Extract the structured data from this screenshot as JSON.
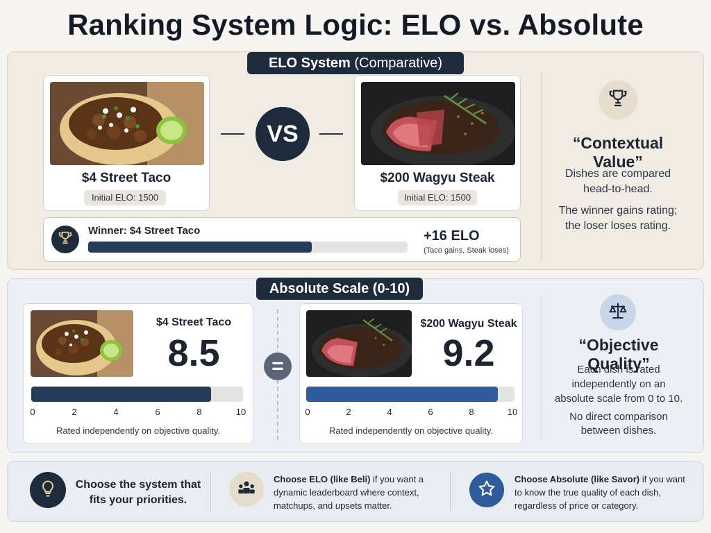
{
  "title": "Ranking System Logic: ELO vs. Absolute",
  "elo": {
    "pill_bold": "ELO System",
    "pill_light": "(Comparative)",
    "dish_a": {
      "name": "$4 Street Taco",
      "chip": "Initial ELO: 1500"
    },
    "dish_b": {
      "name": "$200 Wagyu Steak",
      "chip": "Initial ELO: 1500"
    },
    "vs": "VS",
    "winner_label": "Winner: $4 Street Taco",
    "winner_progress": 0.7,
    "delta": "+16 ELO",
    "delta_note": "(Taco gains, Steak loses)",
    "side_heading": "“Contextual Value”",
    "side_text_1": "Dishes are compared head-to-head.",
    "side_text_2": "The winner gains rating; the loser loses rating."
  },
  "absolute": {
    "pill": "Absolute Scale (0-10)",
    "dish_a": {
      "name": "$4 Street Taco",
      "score": "8.5",
      "score_value": 8.5,
      "caption": "Rated independently on objective quality."
    },
    "dish_b": {
      "name": "$200 Wagyu Steak",
      "score": "9.2",
      "score_value": 9.2,
      "caption": "Rated independently on objective quality."
    },
    "equals": "=",
    "ticks": [
      "0",
      "2",
      "4",
      "6",
      "8",
      "10"
    ],
    "side_heading": "“Objective Quality”",
    "side_text_1": "Each dish is rated independently on an absolute scale from 0 to 10.",
    "side_text_2": "No direct comparison between dishes."
  },
  "footer": {
    "tip": "Choose the system that fits your priorities.",
    "elo_bold": "Choose ELO (like Beli)",
    "elo_rest": " if you want a dynamic leaderboard where context, matchups, and upsets matter.",
    "abs_bold": "Choose Absolute (like Savor)",
    "abs_rest": " if you want to know the true quality of each dish, regardless of price or category."
  },
  "colors": {
    "navy": "#1d2b3d",
    "bar_dark": "#263a5a",
    "bar_blue": "#2f5a9c",
    "tan_icon_bg": "#e6dccb",
    "blue_icon_bg": "#c8d6e8"
  },
  "icons": [
    "trophy-icon",
    "scales-icon",
    "lightbulb-icon",
    "people-icon",
    "star-icon"
  ]
}
